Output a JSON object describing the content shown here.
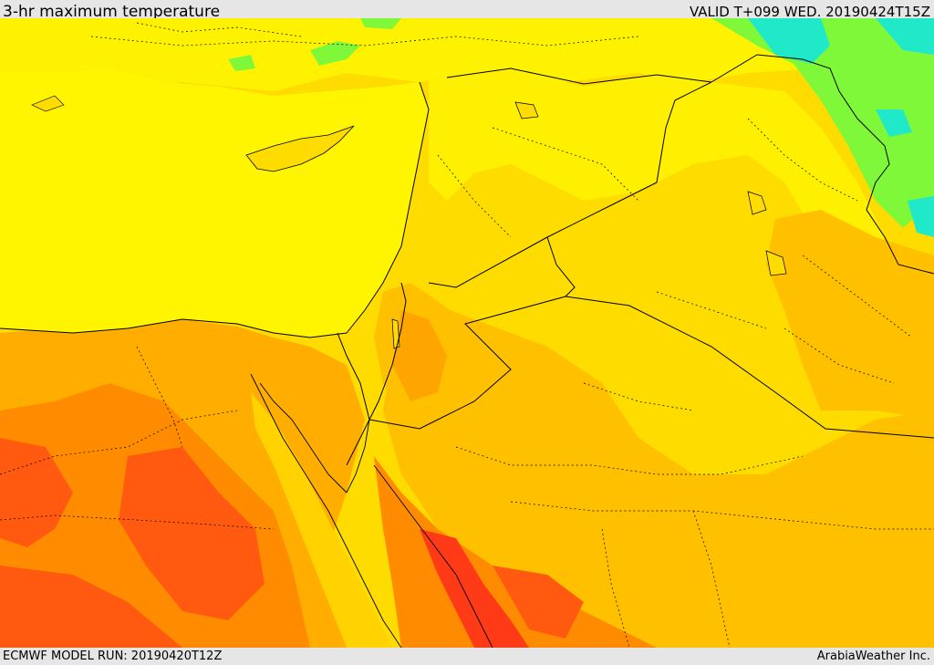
{
  "header": {
    "title": "3-hr maximum temperature",
    "valid": "VALID T+099 WED. 20190424T15Z"
  },
  "footer": {
    "model_run": "ECMWF MODEL RUN: 20190420T12Z",
    "credit": "ArabiaWeather Inc."
  },
  "colors": {
    "sea": "#fff500",
    "cool_yellow": "#fff200",
    "warm_yellow": "#ffdc00",
    "light_orange": "#ffc000",
    "orange": "#ff9f00",
    "dark_orange": "#ff7800",
    "red_orange": "#ff5a10",
    "red": "#ff3b17",
    "green": "#7ff83a",
    "cyan": "#1fe9c8",
    "border": "#000000"
  }
}
